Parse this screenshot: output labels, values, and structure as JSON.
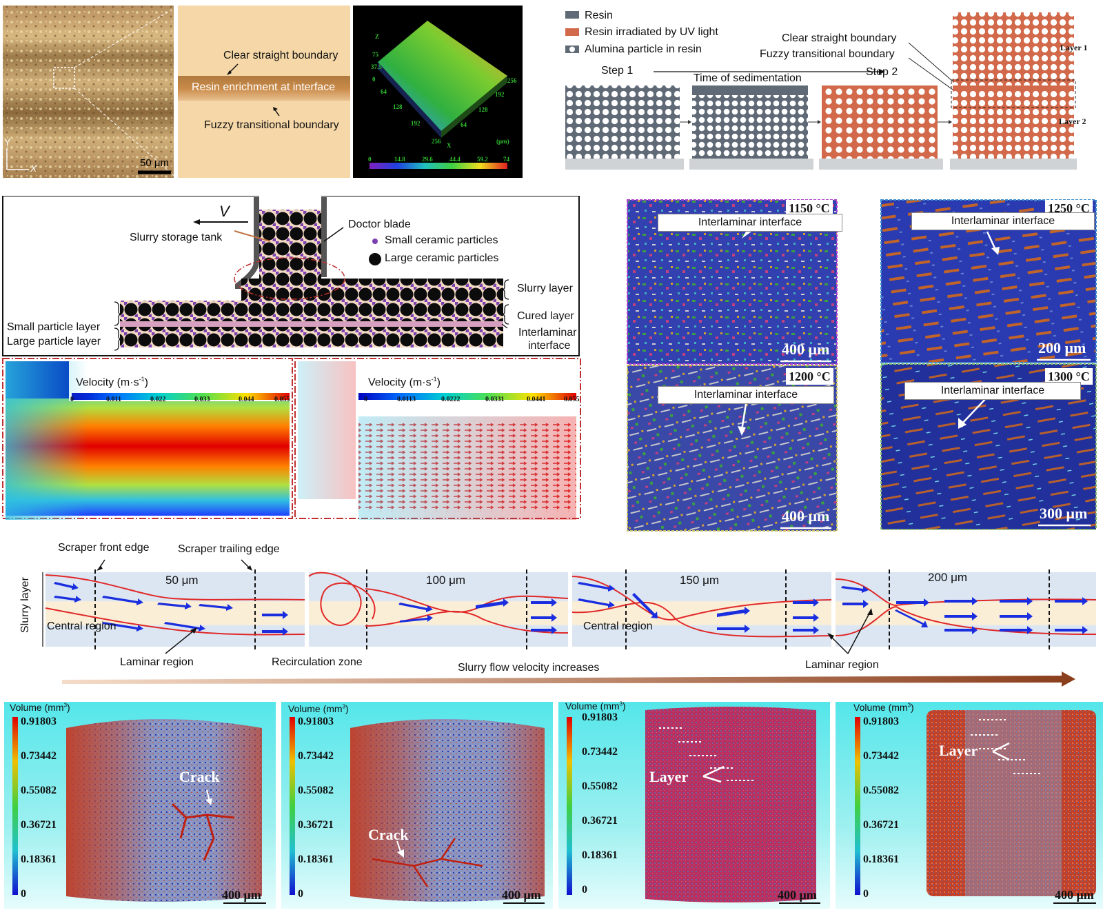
{
  "panel_a": {
    "axis_y": "Y",
    "axis_x": "X",
    "scale": "50 μm",
    "clear_boundary": "Clear straight boundary",
    "resin_enrichment": "Resin enrichment at interface",
    "fuzzy_boundary": "Fuzzy transitional boundary",
    "profile_z_label": "Z",
    "profile_x_label": "X",
    "profile_unit": "(μm)",
    "profile_z_ticks": [
      "75",
      "37.5",
      "0"
    ],
    "profile_x_ticks": [
      "256",
      "192",
      "128",
      "64"
    ],
    "profile_y_ticks": [
      "64",
      "128",
      "192",
      "256"
    ],
    "colorbar_ticks": [
      "0",
      "14.8",
      "29.6",
      "44.4",
      "59.2",
      "74"
    ]
  },
  "panel_b": {
    "legend": [
      "Resin",
      "Resin irradiated by UV light",
      "Alumina particle in resin"
    ],
    "legend_colors": [
      "#5f6a76",
      "#d2694a",
      "#5f6a76"
    ],
    "step1": "Step 1",
    "step2": "Step 2",
    "time": "Time of sedimentation",
    "clear": "Clear straight boundary",
    "fuzzy": "Fuzzy transitional boundary",
    "layer1": "Layer 1",
    "layer2": "Layer 2"
  },
  "panel_c": {
    "v": "V",
    "storage_tank": "Slurry storage tank",
    "doctor_blade": "Doctor blade",
    "small_particles": "Small ceramic particles",
    "large_particles": "Large ceramic particles",
    "slurry_layer": "Slurry layer",
    "cured_layer": "Cured layer",
    "small_layer": "Small particle layer",
    "large_layer": "Large particle layer",
    "interlaminar_1": "Interlaminar",
    "interlaminar_2": "interface",
    "velocity_title": "Velocity (m·s",
    "velocity_exp": "-1",
    "velocity_close": ")",
    "ticks_left": [
      "0",
      "0.011",
      "0.022",
      "0.033",
      "0.044",
      "0.055"
    ],
    "ticks_right": [
      "0",
      "0.0113",
      "0.0222",
      "0.0331",
      "0.0441",
      "0.055"
    ]
  },
  "panel_d": [
    {
      "temp": "1150 °C",
      "label": "Interlaminar interface",
      "scale": "400 μm",
      "border": "#b03cd0"
    },
    {
      "temp": "1250 °C",
      "label": "Interlaminar interface",
      "scale": "200 μm",
      "border": "#3d8fd0"
    },
    {
      "temp": "1200 °C",
      "label": "Interlaminar interface",
      "scale": "400 μm",
      "border": "#c8c060"
    },
    {
      "temp": "1300 °C",
      "label": "Interlaminar interface",
      "scale": "300 μm",
      "border": "#88c070"
    }
  ],
  "panel_e": {
    "front_edge": "Scraper front edge",
    "trailing_edge": "Scraper trailing edge",
    "slurry_layer": "Slurry layer",
    "sizes": [
      "50 μm",
      "100 μm",
      "150 μm",
      "200 μm"
    ],
    "central_region": "Central region",
    "laminar_region": "Laminar region",
    "recirculation": "Recirculation zone",
    "velocity_increases": "Slurry flow velocity increases",
    "laminar_region_2": "Laminar region"
  },
  "panel_f": {
    "volume_label": "Volume (mm",
    "volume_exp": "3",
    "volume_close": ")",
    "ticks": [
      "0.91803",
      "0.73442",
      "0.55082",
      "0.36721",
      "0.18361",
      "0"
    ],
    "crack": "Crack",
    "layer": "Layer",
    "scale": "400 μm"
  }
}
